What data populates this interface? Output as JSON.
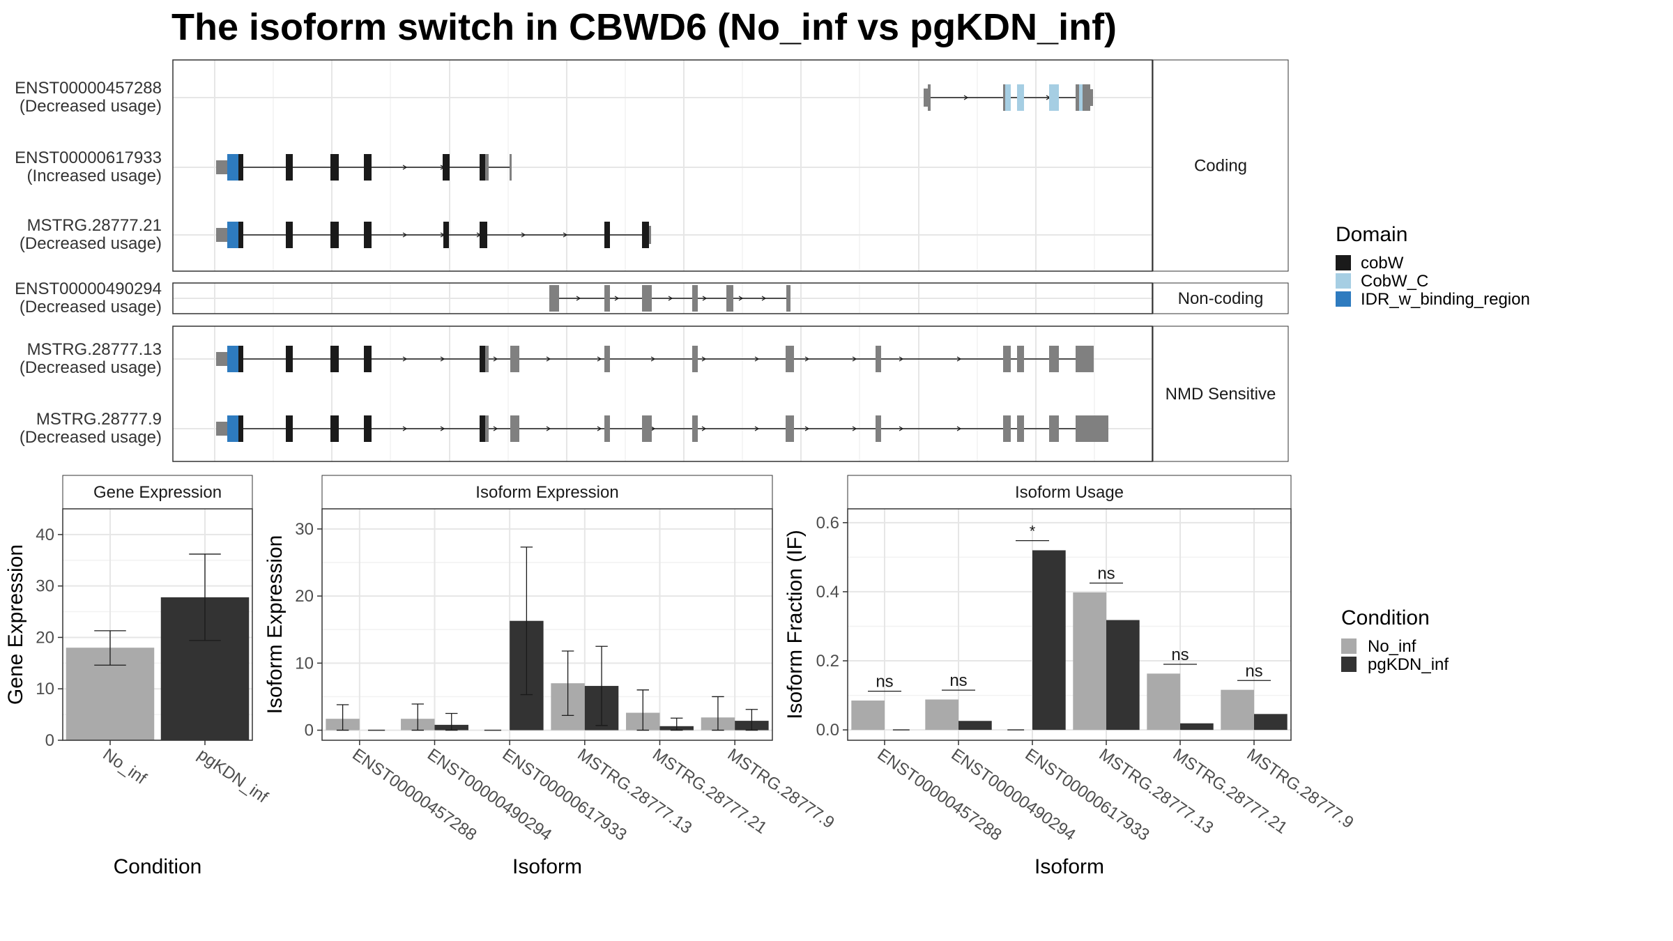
{
  "title": "The isoform switch in CBWD6 (No_inf vs pgKDN_inf)",
  "colors": {
    "cobW": "#1a1a1a",
    "CobW_C": "#a6cee3",
    "IDR_w_binding_region": "#2e7bbf",
    "no_domain": "#808080",
    "No_inf": "#aaaaaa",
    "pgKDN_inf": "#333333"
  },
  "structure": {
    "facets": [
      "Coding",
      "Non-coding",
      "NMD Sensitive"
    ],
    "transcripts": [
      {
        "id": "ENST00000457288",
        "usage": "(Decreased usage)",
        "facet": "Coding"
      },
      {
        "id": "ENST00000617933",
        "usage": "(Increased usage)",
        "facet": "Coding"
      },
      {
        "id": "MSTRG.28777.21",
        "usage": "(Decreased usage)",
        "facet": "Coding"
      },
      {
        "id": "ENST00000490294",
        "usage": "(Decreased usage)",
        "facet": "Non-coding"
      },
      {
        "id": "MSTRG.28777.13",
        "usage": "(Decreased usage)",
        "facet": "NMD Sensitive"
      },
      {
        "id": "MSTRG.28777.9",
        "usage": "(Decreased usage)",
        "facet": "NMD Sensitive"
      }
    ],
    "domain_legend_title": "Domain",
    "domain_legend": [
      "cobW",
      "CobW_C",
      "IDR_w_binding_region"
    ]
  },
  "condition_legend": {
    "title": "Condition",
    "entries": [
      "No_inf",
      "pgKDN_inf"
    ]
  },
  "chart_data": [
    {
      "type": "bar",
      "title": "Gene Expression",
      "xlabel": "Condition",
      "ylabel": "Gene Expression",
      "categories": [
        "No_inf",
        "pgKDN_inf"
      ],
      "values": [
        18.0,
        27.8
      ],
      "error_low": [
        14.6,
        19.4
      ],
      "error_high": [
        21.3,
        36.2
      ],
      "ylim": [
        0,
        45
      ],
      "yticks": [
        0,
        10,
        20,
        30,
        40
      ]
    },
    {
      "type": "bar",
      "title": "Isoform Expression",
      "xlabel": "Isoform",
      "ylabel": "Isoform Expression",
      "categories": [
        "ENST00000457288",
        "ENST00000490294",
        "ENST00000617933",
        "MSTRG.28777.13",
        "MSTRG.28777.21",
        "MSTRG.28777.9"
      ],
      "series": [
        {
          "name": "No_inf",
          "values": [
            1.7,
            1.7,
            0.0,
            7.0,
            2.6,
            1.9
          ],
          "error_low": [
            0.0,
            0.0,
            0.0,
            2.2,
            0.0,
            0.0
          ],
          "error_high": [
            3.8,
            3.9,
            0.0,
            11.8,
            6.0,
            5.0
          ]
        },
        {
          "name": "pgKDN_inf",
          "values": [
            0.0,
            0.8,
            16.3,
            6.6,
            0.6,
            1.4
          ],
          "error_low": [
            0.0,
            0.0,
            5.3,
            0.7,
            0.0,
            0.0
          ],
          "error_high": [
            0.0,
            2.5,
            27.3,
            12.5,
            1.8,
            3.1
          ]
        }
      ],
      "ylim": [
        -1.5,
        33
      ],
      "yticks": [
        0,
        10,
        20,
        30
      ]
    },
    {
      "type": "bar",
      "title": "Isoform Usage",
      "xlabel": "Isoform",
      "ylabel": "Isoform Fraction (IF)",
      "categories": [
        "ENST00000457288",
        "ENST00000490294",
        "ENST00000617933",
        "MSTRG.28777.13",
        "MSTRG.28777.21",
        "MSTRG.28777.9"
      ],
      "series": [
        {
          "name": "No_inf",
          "values": [
            0.085,
            0.088,
            0.0,
            0.398,
            0.163,
            0.116
          ]
        },
        {
          "name": "pgKDN_inf",
          "values": [
            0.0,
            0.026,
            0.52,
            0.318,
            0.019,
            0.046
          ]
        }
      ],
      "significance": [
        "ns",
        "ns",
        "*",
        "ns",
        "ns",
        "ns"
      ],
      "sig_y": [
        0.112,
        0.115,
        0.548,
        0.425,
        0.19,
        0.143
      ],
      "ylim": [
        -0.03,
        0.64
      ],
      "yticks": [
        0.0,
        0.2,
        0.4,
        0.6
      ],
      "ytick_labels": [
        "0.0",
        "0.2",
        "0.4",
        "0.6"
      ]
    }
  ]
}
